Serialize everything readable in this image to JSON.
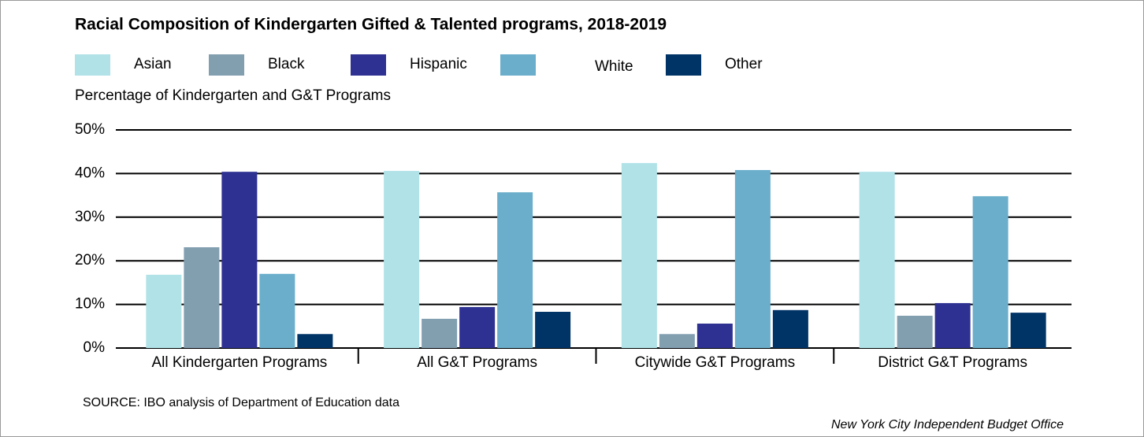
{
  "chart_data": {
    "type": "bar",
    "title": "Racial Composition of Kindergarten Gifted & Talented programs, 2018-2019",
    "y_label": "Percentage of Kindergarten and G&T Programs",
    "source": "SOURCE: IBO analysis of Department of Education data",
    "credit": "New York City Independent Budget Office",
    "categories": [
      "All Kindergarten Programs",
      "All G&T Programs",
      "Citywide G&T Programs",
      "District G&T Programs"
    ],
    "series": [
      {
        "name": "Asian",
        "color": "#b0e2e8",
        "values": [
          16.8,
          40.6,
          42.4,
          40.4
        ]
      },
      {
        "name": "Black",
        "color": "#829fb0",
        "values": [
          23.1,
          6.7,
          3.2,
          7.4
        ]
      },
      {
        "name": "Hispanic",
        "color": "#2e3192",
        "values": [
          40.4,
          9.4,
          5.6,
          10.3
        ]
      },
      {
        "name": "White",
        "color": "#6aaecb",
        "values": [
          17,
          35.7,
          40.8,
          34.8
        ]
      },
      {
        "name": "Other",
        "color": "#003366",
        "values": [
          3.2,
          8.3,
          8.7,
          8.1
        ]
      }
    ],
    "ylim": [
      0,
      50
    ],
    "yticks": [
      {
        "value": 0,
        "label": "0%"
      },
      {
        "value": 10,
        "label": "10%"
      },
      {
        "value": 20,
        "label": "20%"
      },
      {
        "value": 30,
        "label": "30%"
      },
      {
        "value": 40,
        "label": "40%"
      },
      {
        "value": 50,
        "label": "50%"
      }
    ],
    "grid": true
  }
}
